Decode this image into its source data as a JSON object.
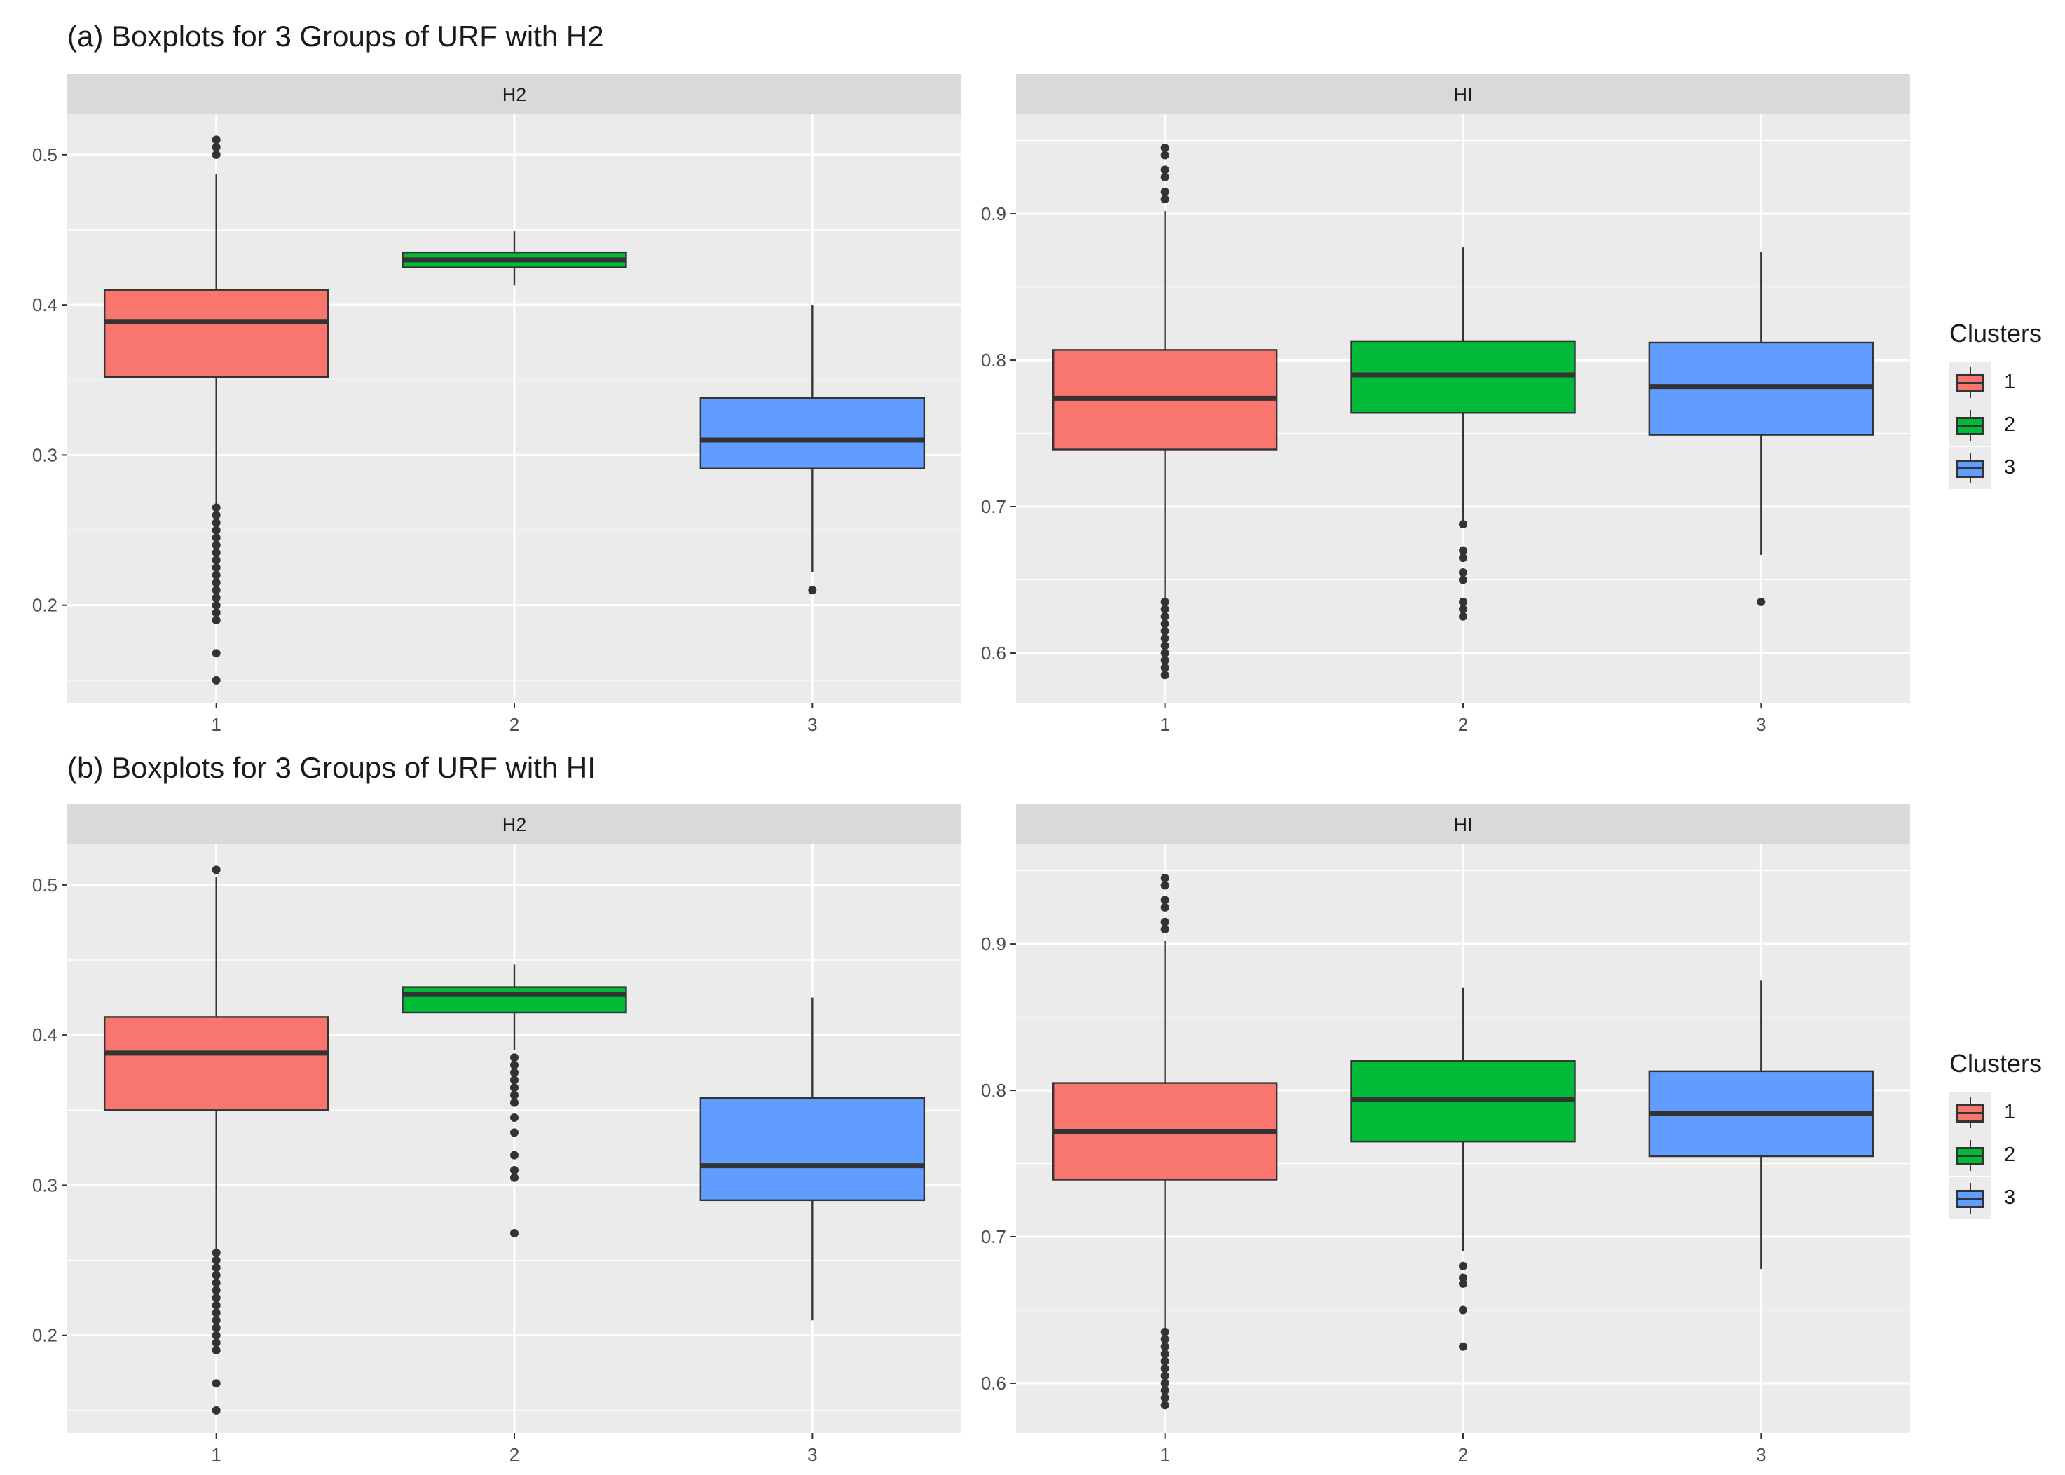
{
  "colors": {
    "cluster1": "#f8766d",
    "cluster2": "#00ba38",
    "cluster3": "#619cff",
    "panel_bg": "#ebebeb",
    "strip_bg": "#d9d9d9",
    "ink": "#333333"
  },
  "legend": {
    "title": "Clusters",
    "items": [
      "1",
      "2",
      "3"
    ]
  },
  "rows": [
    {
      "title": "(a) Boxplots for 3 Groups of URF with H2"
    },
    {
      "title": "(b) Boxplots for 3 Groups of URF with HI"
    }
  ],
  "chart_data": [
    {
      "type": "boxplot",
      "row": 0,
      "strip": "H2",
      "categories": [
        "1",
        "2",
        "3"
      ],
      "ylim": [
        0.135,
        0.527
      ],
      "yticks": [
        0.2,
        0.3,
        0.4,
        0.5
      ],
      "boxes": [
        {
          "q1": 0.352,
          "median": 0.389,
          "q3": 0.41,
          "whisker_low": 0.267,
          "whisker_high": 0.487,
          "outliers": [
            0.15,
            0.168,
            0.19,
            0.195,
            0.2,
            0.205,
            0.21,
            0.215,
            0.22,
            0.225,
            0.23,
            0.235,
            0.24,
            0.245,
            0.25,
            0.255,
            0.26,
            0.265,
            0.5,
            0.505,
            0.51
          ]
        },
        {
          "q1": 0.425,
          "median": 0.43,
          "q3": 0.435,
          "whisker_low": 0.413,
          "whisker_high": 0.449,
          "outliers": []
        },
        {
          "q1": 0.291,
          "median": 0.31,
          "q3": 0.338,
          "whisker_low": 0.222,
          "whisker_high": 0.4,
          "outliers": [
            0.21
          ]
        }
      ]
    },
    {
      "type": "boxplot",
      "row": 0,
      "strip": "HI",
      "categories": [
        "1",
        "2",
        "3"
      ],
      "ylim": [
        0.566,
        0.968
      ],
      "yticks": [
        0.6,
        0.7,
        0.8,
        0.9
      ],
      "boxes": [
        {
          "q1": 0.739,
          "median": 0.774,
          "q3": 0.807,
          "whisker_low": 0.637,
          "whisker_high": 0.902,
          "outliers": [
            0.585,
            0.59,
            0.595,
            0.6,
            0.605,
            0.61,
            0.615,
            0.62,
            0.625,
            0.63,
            0.635,
            0.91,
            0.915,
            0.925,
            0.93,
            0.94,
            0.945
          ]
        },
        {
          "q1": 0.764,
          "median": 0.79,
          "q3": 0.813,
          "whisker_low": 0.69,
          "whisker_high": 0.877,
          "outliers": [
            0.625,
            0.63,
            0.635,
            0.65,
            0.655,
            0.665,
            0.67,
            0.688
          ]
        },
        {
          "q1": 0.749,
          "median": 0.782,
          "q3": 0.812,
          "whisker_low": 0.667,
          "whisker_high": 0.874,
          "outliers": [
            0.635
          ]
        }
      ]
    },
    {
      "type": "boxplot",
      "row": 1,
      "strip": "H2",
      "categories": [
        "1",
        "2",
        "3"
      ],
      "ylim": [
        0.135,
        0.527
      ],
      "yticks": [
        0.2,
        0.3,
        0.4,
        0.5
      ],
      "boxes": [
        {
          "q1": 0.35,
          "median": 0.388,
          "q3": 0.412,
          "whisker_low": 0.255,
          "whisker_high": 0.505,
          "outliers": [
            0.15,
            0.168,
            0.19,
            0.195,
            0.2,
            0.205,
            0.21,
            0.215,
            0.22,
            0.225,
            0.23,
            0.235,
            0.24,
            0.245,
            0.25,
            0.255,
            0.51
          ]
        },
        {
          "q1": 0.415,
          "median": 0.427,
          "q3": 0.432,
          "whisker_low": 0.39,
          "whisker_high": 0.447,
          "outliers": [
            0.268,
            0.305,
            0.31,
            0.32,
            0.335,
            0.345,
            0.355,
            0.36,
            0.365,
            0.37,
            0.375,
            0.38,
            0.385
          ]
        },
        {
          "q1": 0.29,
          "median": 0.313,
          "q3": 0.358,
          "whisker_low": 0.21,
          "whisker_high": 0.425,
          "outliers": []
        }
      ]
    },
    {
      "type": "boxplot",
      "row": 1,
      "strip": "HI",
      "categories": [
        "1",
        "2",
        "3"
      ],
      "ylim": [
        0.566,
        0.968
      ],
      "yticks": [
        0.6,
        0.7,
        0.8,
        0.9
      ],
      "boxes": [
        {
          "q1": 0.739,
          "median": 0.772,
          "q3": 0.805,
          "whisker_low": 0.637,
          "whisker_high": 0.902,
          "outliers": [
            0.585,
            0.59,
            0.595,
            0.6,
            0.605,
            0.61,
            0.615,
            0.62,
            0.625,
            0.63,
            0.635,
            0.91,
            0.915,
            0.925,
            0.93,
            0.94,
            0.945
          ]
        },
        {
          "q1": 0.765,
          "median": 0.794,
          "q3": 0.82,
          "whisker_low": 0.69,
          "whisker_high": 0.87,
          "outliers": [
            0.625,
            0.65,
            0.668,
            0.672,
            0.68
          ]
        },
        {
          "q1": 0.755,
          "median": 0.784,
          "q3": 0.813,
          "whisker_low": 0.678,
          "whisker_high": 0.875,
          "outliers": []
        }
      ]
    }
  ]
}
